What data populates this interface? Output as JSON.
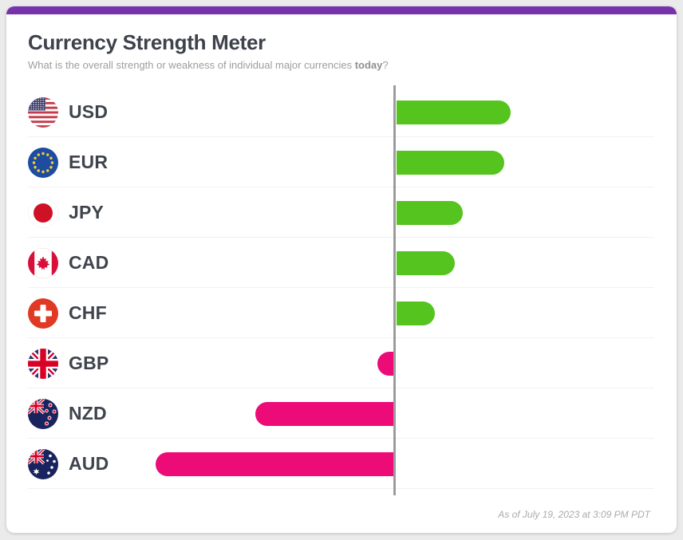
{
  "page": {
    "background_color": "#ebebeb",
    "accent_bar_color": "#7633ac",
    "card_color": "#ffffff"
  },
  "header": {
    "title": "Currency Strength Meter",
    "subtitle_prefix": "What is the overall strength or weakness of individual major currencies ",
    "subtitle_bold": "today",
    "subtitle_suffix": "?"
  },
  "footer": {
    "timestamp": "As of July 19, 2023 at 3:09 PM PDT"
  },
  "chart_data": {
    "type": "bar",
    "orientation": "horizontal",
    "title": "Currency Strength Meter",
    "categories": [
      "USD",
      "EUR",
      "JPY",
      "CAD",
      "CHF",
      "GBP",
      "NZD",
      "AUD"
    ],
    "values": [
      143,
      135,
      83,
      73,
      48,
      -20,
      -173,
      -298
    ],
    "value_note": "relative strength as bar length in px from baseline; chart displays no numeric axis",
    "positive_color": "#55c41f",
    "negative_color": "#ec0b77",
    "baseline_color": "#9c9c9c",
    "gridline_color": "#f1f1f1",
    "legend": "none",
    "flag_icons": [
      "us-flag-icon",
      "eu-flag-icon",
      "jp-flag-icon",
      "ca-flag-icon",
      "ch-flag-icon",
      "gb-flag-icon",
      "nz-flag-icon",
      "au-flag-icon"
    ]
  }
}
